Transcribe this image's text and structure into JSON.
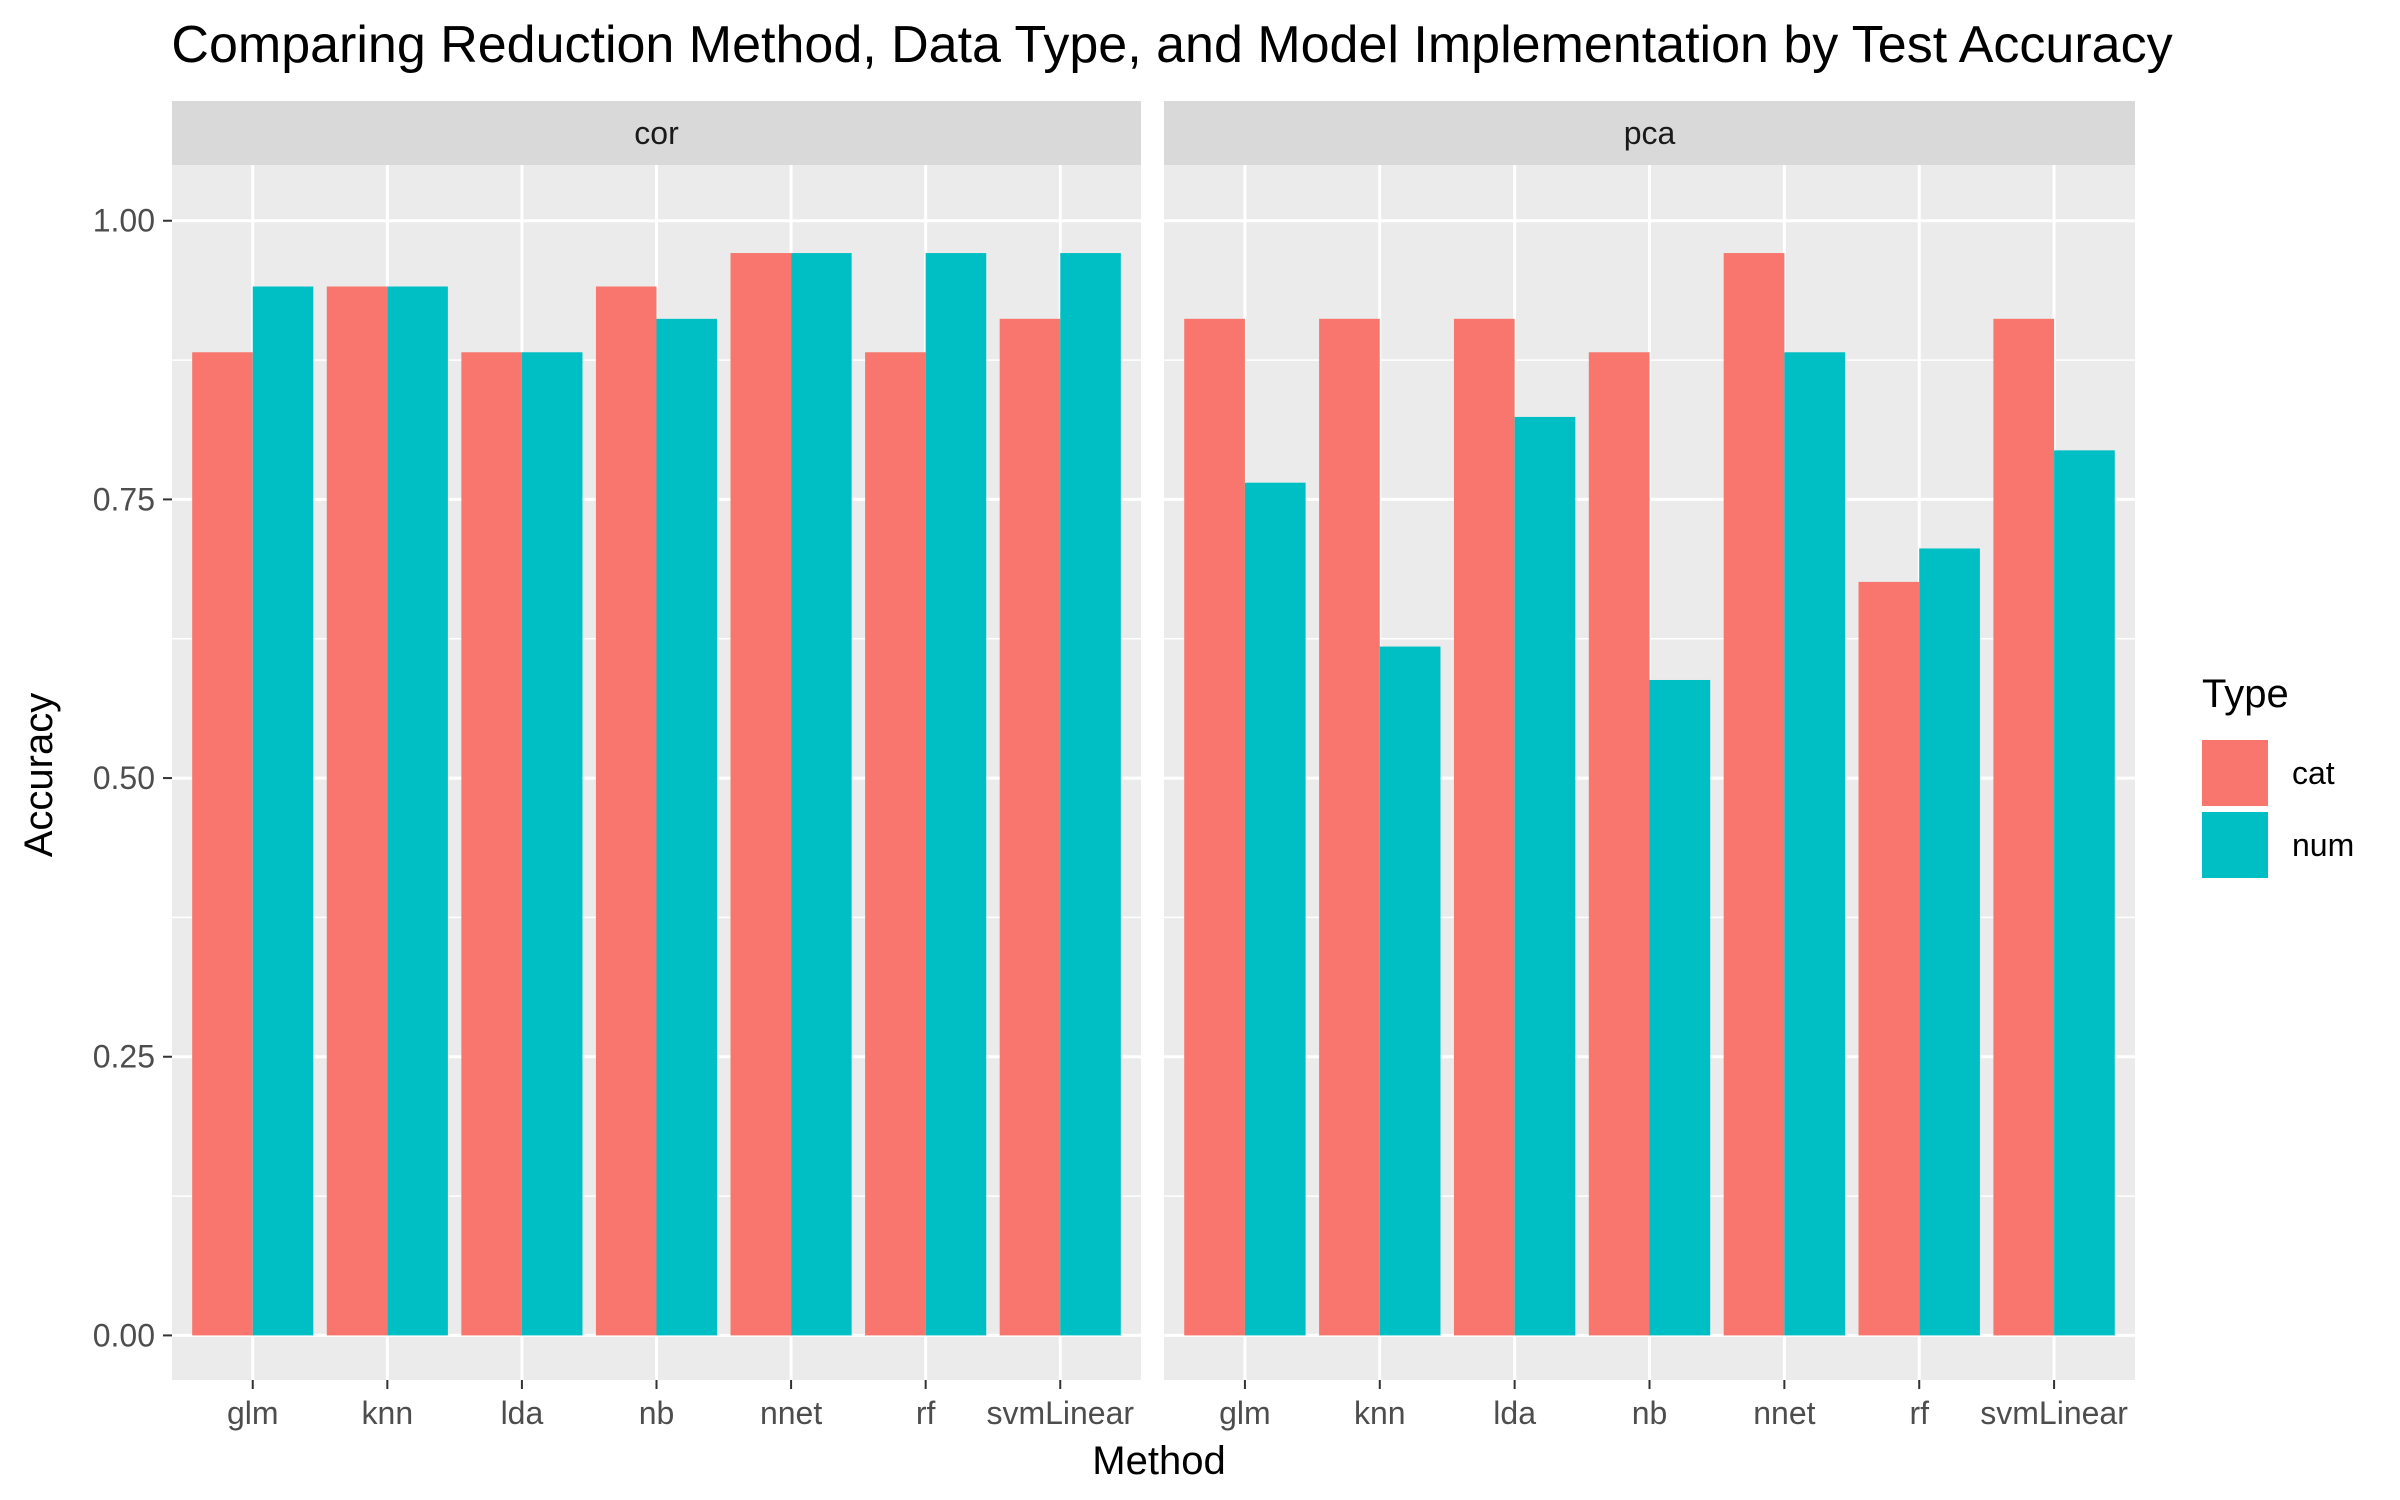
{
  "chart_data": {
    "type": "bar",
    "title": "Comparing Reduction Method, Data Type, and Model Implementation by Test Accuracy",
    "xlabel": "Method",
    "ylabel": "Accuracy",
    "ylim": [
      -0.04,
      1.05
    ],
    "yticks": [
      0.0,
      0.25,
      0.5,
      0.75,
      1.0
    ],
    "ytick_labels": [
      "0.00",
      "0.25",
      "0.50",
      "0.75",
      "1.00"
    ],
    "grid": true,
    "legend": {
      "title": "Type",
      "position": "right",
      "entries": [
        {
          "name": "cat",
          "color": "#F8766D"
        },
        {
          "name": "num",
          "color": "#00BFC4"
        }
      ]
    },
    "categories": [
      "glm",
      "knn",
      "lda",
      "nb",
      "nnet",
      "rf",
      "svmLinear"
    ],
    "panels": [
      {
        "label": "cor",
        "series": [
          {
            "name": "cat",
            "values": [
              0.882,
              0.941,
              0.882,
              0.941,
              0.971,
              0.882,
              0.912
            ]
          },
          {
            "name": "num",
            "values": [
              0.941,
              0.941,
              0.882,
              0.912,
              0.971,
              0.971,
              0.971
            ]
          }
        ]
      },
      {
        "label": "pca",
        "series": [
          {
            "name": "cat",
            "values": [
              0.912,
              0.912,
              0.912,
              0.882,
              0.971,
              0.676,
              0.912
            ]
          },
          {
            "name": "num",
            "values": [
              0.765,
              0.618,
              0.824,
              0.588,
              0.882,
              0.706,
              0.794
            ]
          }
        ]
      }
    ]
  },
  "colors": {
    "panel_bg": "#EBEBEB",
    "strip_bg": "#D9D9D9",
    "grid": "#FFFFFF"
  }
}
